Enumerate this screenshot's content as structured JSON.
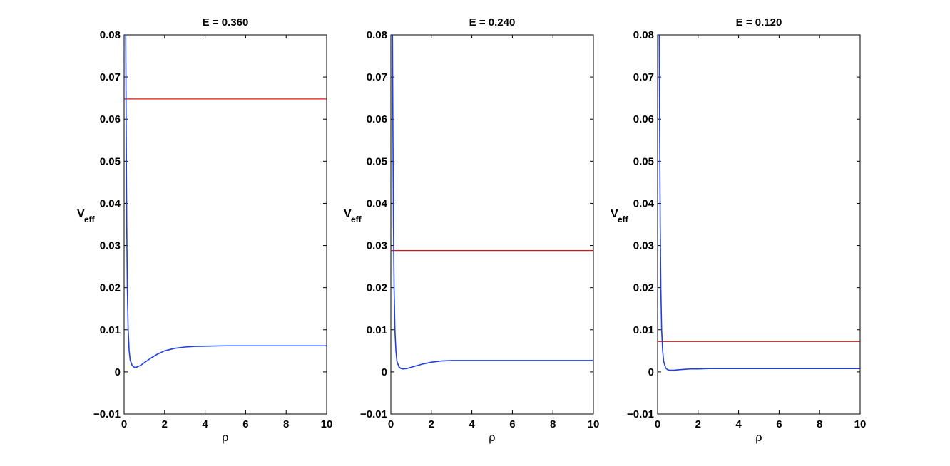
{
  "chart_data": [
    {
      "type": "line",
      "title": "E = 0.360",
      "xlabel": "ρ",
      "ylabel_main": "V",
      "ylabel_sub": "eff",
      "xlim": [
        0,
        10
      ],
      "ylim": [
        -0.01,
        0.08
      ],
      "xticks": [
        "0",
        "2",
        "4",
        "6",
        "8",
        "10"
      ],
      "yticks": [
        "-0.01",
        "0",
        "0.01",
        "0.02",
        "0.03",
        "0.04",
        "0.05",
        "0.06",
        "0.07",
        "0.08"
      ],
      "energy_level": 0.0648,
      "potential": {
        "x": [
          0.05,
          0.08,
          0.1,
          0.13,
          0.16,
          0.2,
          0.25,
          0.3,
          0.4,
          0.5,
          0.6,
          0.8,
          1.0,
          1.3,
          1.6,
          2.0,
          2.5,
          3.0,
          3.5,
          4.0,
          5.0,
          6.0,
          8.0,
          10.0
        ],
        "y": [
          0.085,
          0.08,
          0.06,
          0.035,
          0.02,
          0.01,
          0.005,
          0.0028,
          0.0015,
          0.0011,
          0.0011,
          0.0015,
          0.0022,
          0.0032,
          0.0041,
          0.005,
          0.0056,
          0.0059,
          0.00605,
          0.0061,
          0.0062,
          0.0062,
          0.0062,
          0.0062
        ]
      }
    },
    {
      "type": "line",
      "title": "E = 0.240",
      "xlabel": "ρ",
      "ylabel_main": "V",
      "ylabel_sub": "eff",
      "xlim": [
        0,
        10
      ],
      "ylim": [
        -0.01,
        0.08
      ],
      "xticks": [
        "0",
        "2",
        "4",
        "6",
        "8",
        "10"
      ],
      "yticks": [
        "-0.01",
        "0",
        "0.01",
        "0.02",
        "0.03",
        "0.04",
        "0.05",
        "0.06",
        "0.07",
        "0.08"
      ],
      "energy_level": 0.0288,
      "potential": {
        "x": [
          0.05,
          0.08,
          0.1,
          0.13,
          0.16,
          0.2,
          0.25,
          0.3,
          0.4,
          0.5,
          0.6,
          0.8,
          1.0,
          1.3,
          1.6,
          2.0,
          2.5,
          3.0,
          3.5,
          4.0,
          5.0,
          6.0,
          8.0,
          10.0
        ],
        "y": [
          0.085,
          0.08,
          0.06,
          0.035,
          0.02,
          0.01,
          0.005,
          0.0025,
          0.0012,
          0.0008,
          0.0007,
          0.0008,
          0.0011,
          0.0015,
          0.0019,
          0.0023,
          0.0026,
          0.0027,
          0.0027,
          0.0027,
          0.0027,
          0.0027,
          0.0027,
          0.0027
        ]
      }
    },
    {
      "type": "line",
      "title": "E = 0.120",
      "xlabel": "ρ",
      "ylabel_main": "V",
      "ylabel_sub": "eff",
      "xlim": [
        0,
        10
      ],
      "ylim": [
        -0.01,
        0.08
      ],
      "xticks": [
        "0",
        "2",
        "4",
        "6",
        "8",
        "10"
      ],
      "yticks": [
        "-0.01",
        "0",
        "0.01",
        "0.02",
        "0.03",
        "0.04",
        "0.05",
        "0.06",
        "0.07",
        "0.08"
      ],
      "energy_level": 0.0072,
      "potential": {
        "x": [
          0.05,
          0.08,
          0.1,
          0.13,
          0.16,
          0.2,
          0.25,
          0.3,
          0.4,
          0.5,
          0.6,
          0.8,
          1.0,
          1.3,
          1.6,
          2.0,
          2.5,
          3.0,
          3.5,
          4.0,
          5.0,
          6.0,
          8.0,
          10.0
        ],
        "y": [
          0.085,
          0.08,
          0.06,
          0.035,
          0.02,
          0.01,
          0.005,
          0.0025,
          0.0009,
          0.0005,
          0.0004,
          0.0004,
          0.0005,
          0.0006,
          0.0007,
          0.0007,
          0.0008,
          0.0008,
          0.0008,
          0.0008,
          0.0008,
          0.0008,
          0.0008,
          0.0008
        ]
      }
    }
  ],
  "colors": {
    "potential": "#1f3fe0",
    "energy_level": "#e01010",
    "axes": "#000000"
  }
}
